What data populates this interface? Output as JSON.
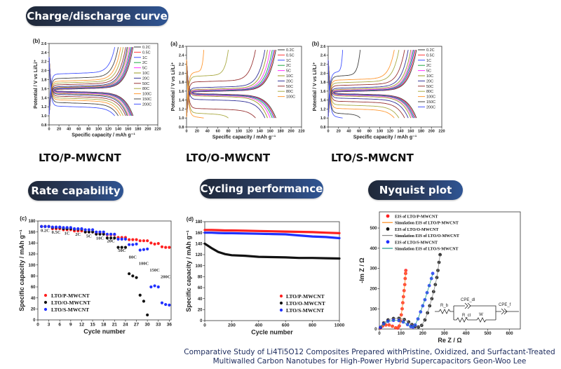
{
  "headers": {
    "charge_discharge": "Charge/discharge curve",
    "rate_capability": "Rate capability",
    "cycling": "Cycling performance",
    "nyquist": "Nyquist plot"
  },
  "sample_labels": [
    "LTO/P-MWCNT",
    "LTO/O-MWCNT",
    "LTO/S-MWCNT"
  ],
  "caption": "Comparative Study of Li4Ti5O12 Composites Prepared withPristine, Oxidized, and Surfactant-Treated Multiwalled Carbon Nanotubes for High-Power Hybrid Supercapacitors Geon-Woo Lee",
  "chart_data": [
    {
      "type": "line",
      "panel_label": "(b)",
      "xlabel": "Specific capacity / mAh g⁻¹",
      "ylabel": "Potential / V vs Li/Li⁺",
      "xlim": [
        0,
        220
      ],
      "ylim": [
        0.8,
        2.6
      ],
      "xticks": [
        "0",
        "20",
        "40",
        "60",
        "80",
        "100",
        "120",
        "140",
        "160",
        "180",
        "200",
        "220"
      ],
      "yticks": [
        "0.8",
        "1.0",
        "1.2",
        "1.4",
        "1.6",
        "1.8",
        "2.0",
        "2.2",
        "2.4",
        "2.6"
      ],
      "legend_position": "top-right",
      "series": [
        {
          "name": "0.2C",
          "color": "#3a3a3a",
          "capacity": 170,
          "charge_plateau": 1.58,
          "discharge_plateau": 1.55
        },
        {
          "name": "0.5C",
          "color": "#ff3b3b",
          "capacity": 168,
          "charge_plateau": 1.585,
          "discharge_plateau": 1.545
        },
        {
          "name": "1C",
          "color": "#3b4bff",
          "capacity": 167,
          "charge_plateau": 1.59,
          "discharge_plateau": 1.54
        },
        {
          "name": "2C",
          "color": "#22a844",
          "capacity": 165,
          "charge_plateau": 1.6,
          "discharge_plateau": 1.53
        },
        {
          "name": "5C",
          "color": "#ff33ff",
          "capacity": 163,
          "charge_plateau": 1.61,
          "discharge_plateau": 1.52
        },
        {
          "name": "10C",
          "color": "#9a9a22",
          "capacity": 160,
          "charge_plateau": 1.62,
          "discharge_plateau": 1.5
        },
        {
          "name": "20C",
          "color": "#333399",
          "capacity": 158,
          "charge_plateau": 1.64,
          "discharge_plateau": 1.48
        },
        {
          "name": "50C",
          "color": "#993333",
          "capacity": 155,
          "charge_plateau": 1.68,
          "discharge_plateau": 1.44
        },
        {
          "name": "80C",
          "color": "#aaaa44",
          "capacity": 150,
          "charge_plateau": 1.72,
          "discharge_plateau": 1.4
        },
        {
          "name": "100C",
          "color": "#ff9933",
          "capacity": 145,
          "charge_plateau": 1.76,
          "discharge_plateau": 1.36
        },
        {
          "name": "150C",
          "color": "#444444",
          "capacity": 140,
          "charge_plateau": 1.82,
          "discharge_plateau": 1.3
        },
        {
          "name": "200C",
          "color": "#4455ff",
          "capacity": 133,
          "charge_plateau": 1.92,
          "discharge_plateau": 1.22
        }
      ]
    },
    {
      "type": "line",
      "panel_label": "(a)",
      "xlabel": "Specific capacity / mAh g⁻¹",
      "ylabel": "Potential / V vs Li/Li⁺",
      "xlim": [
        0,
        220
      ],
      "ylim": [
        0.8,
        2.6
      ],
      "xticks": [
        "0",
        "20",
        "40",
        "60",
        "80",
        "100",
        "120",
        "140",
        "160",
        "180",
        "200",
        "220"
      ],
      "yticks": [
        "0.8",
        "1.0",
        "1.2",
        "1.4",
        "1.6",
        "1.8",
        "2.0",
        "2.2",
        "2.4",
        "2.6"
      ],
      "legend_position": "top-right",
      "series": [
        {
          "name": "0.2C",
          "color": "#3a3a3a",
          "capacity": 171,
          "charge_plateau": 1.58,
          "discharge_plateau": 1.55
        },
        {
          "name": "0.5C",
          "color": "#ff3b3b",
          "capacity": 169,
          "charge_plateau": 1.585,
          "discharge_plateau": 1.545
        },
        {
          "name": "1C",
          "color": "#3b4bff",
          "capacity": 167,
          "charge_plateau": 1.59,
          "discharge_plateau": 1.54
        },
        {
          "name": "2C",
          "color": "#22a844",
          "capacity": 164,
          "charge_plateau": 1.6,
          "discharge_plateau": 1.53
        },
        {
          "name": "5C",
          "color": "#ff33ff",
          "capacity": 160,
          "charge_plateau": 1.61,
          "discharge_plateau": 1.52
        },
        {
          "name": "10C",
          "color": "#9a9a22",
          "capacity": 155,
          "charge_plateau": 1.63,
          "discharge_plateau": 1.5
        },
        {
          "name": "20C",
          "color": "#333399",
          "capacity": 150,
          "charge_plateau": 1.67,
          "discharge_plateau": 1.42
        },
        {
          "name": "50C",
          "color": "#993333",
          "capacity": 132,
          "charge_plateau": 1.8,
          "discharge_plateau": 1.22
        },
        {
          "name": "80C",
          "color": "#aaaa44",
          "capacity": 80,
          "charge_plateau": 1.92,
          "discharge_plateau": 1.12
        },
        {
          "name": "100C",
          "color": "#ff9933",
          "capacity": 33,
          "charge_plateau": 2.0,
          "discharge_plateau": 1.05
        }
      ]
    },
    {
      "type": "line",
      "panel_label": "(b)",
      "xlabel": "Specific capacity / mAh g⁻¹",
      "ylabel": "Potential / V vs Li/Li⁺",
      "xlim": [
        0,
        220
      ],
      "ylim": [
        0.8,
        2.6
      ],
      "xticks": [
        "0",
        "20",
        "40",
        "60",
        "80",
        "100",
        "120",
        "140",
        "160",
        "180",
        "200",
        "220"
      ],
      "yticks": [
        "0.8",
        "1.0",
        "1.2",
        "1.4",
        "1.6",
        "1.8",
        "2.0",
        "2.2",
        "2.4",
        "2.6"
      ],
      "legend_position": "top-right",
      "series": [
        {
          "name": "0.2C",
          "color": "#3a3a3a",
          "capacity": 171,
          "charge_plateau": 1.58,
          "discharge_plateau": 1.55
        },
        {
          "name": "0.5C",
          "color": "#ff3b3b",
          "capacity": 169,
          "charge_plateau": 1.585,
          "discharge_plateau": 1.545
        },
        {
          "name": "1C",
          "color": "#3b4bff",
          "capacity": 167,
          "charge_plateau": 1.59,
          "discharge_plateau": 1.54
        },
        {
          "name": "2C",
          "color": "#22a844",
          "capacity": 165,
          "charge_plateau": 1.6,
          "discharge_plateau": 1.53
        },
        {
          "name": "5C",
          "color": "#ff33ff",
          "capacity": 163,
          "charge_plateau": 1.61,
          "discharge_plateau": 1.52
        },
        {
          "name": "10C",
          "color": "#9a9a22",
          "capacity": 160,
          "charge_plateau": 1.63,
          "discharge_plateau": 1.5
        },
        {
          "name": "20C",
          "color": "#333399",
          "capacity": 155,
          "charge_plateau": 1.66,
          "discharge_plateau": 1.45
        },
        {
          "name": "50C",
          "color": "#993333",
          "capacity": 148,
          "charge_plateau": 1.72,
          "discharge_plateau": 1.38
        },
        {
          "name": "80C",
          "color": "#aaaa44",
          "capacity": 137,
          "charge_plateau": 1.78,
          "discharge_plateau": 1.3
        },
        {
          "name": "100C",
          "color": "#ff9933",
          "capacity": 128,
          "charge_plateau": 1.84,
          "discharge_plateau": 1.22
        },
        {
          "name": "150C",
          "color": "#444444",
          "capacity": 62,
          "charge_plateau": 1.92,
          "discharge_plateau": 1.12
        },
        {
          "name": "200C",
          "color": "#4455ff",
          "capacity": 28,
          "charge_plateau": 2.0,
          "discharge_plateau": 1.05
        }
      ]
    },
    {
      "type": "scatter",
      "panel_label": "(c)",
      "xlabel": "Cycle number",
      "ylabel": "Specific capacity / mAh g⁻¹",
      "xlim": [
        0,
        36.5
      ],
      "ylim": [
        0,
        180
      ],
      "xticks": [
        "0",
        "3",
        "6",
        "9",
        "12",
        "15",
        "18",
        "21",
        "24",
        "27",
        "30",
        "33",
        "36"
      ],
      "yticks": [
        "0",
        "20",
        "40",
        "60",
        "80",
        "100",
        "120",
        "140",
        "160",
        "180"
      ],
      "legend_position": "bottom-left",
      "rate_labels": [
        "0.2C",
        "0.5C",
        "1C",
        "2C",
        "5C",
        "10C",
        "20C",
        "50C",
        "80C",
        "100C",
        "150C",
        "200C"
      ],
      "series": [
        {
          "name": "LTO/P-MWCNT",
          "color": "#ff2020",
          "values": [
            170,
            170,
            170,
            166,
            166,
            166,
            164,
            164,
            164,
            162,
            162,
            162,
            160,
            160,
            160,
            157,
            157,
            157,
            155,
            155,
            155,
            150,
            150,
            150,
            146,
            146,
            146,
            144,
            144,
            144,
            140,
            138,
            139,
            133,
            132,
            132
          ]
        },
        {
          "name": "LTO/O-MWCNT",
          "color": "#111111",
          "values": [
            170,
            170,
            170,
            168,
            168,
            168,
            166,
            166,
            166,
            165,
            165,
            165,
            160,
            160,
            160,
            156,
            156,
            156,
            149,
            149,
            149,
            132,
            132,
            132,
            84,
            80,
            77,
            45,
            34,
            9,
            null,
            null,
            null,
            null,
            null,
            null
          ]
        },
        {
          "name": "LTO/S-MWCNT",
          "color": "#2030ff",
          "values": [
            170,
            170,
            170,
            169,
            169,
            169,
            168,
            168,
            168,
            166,
            166,
            166,
            164,
            164,
            164,
            160,
            160,
            160,
            156,
            156,
            156,
            147,
            147,
            147,
            137,
            137,
            138,
            127,
            128,
            129,
            60,
            62,
            60,
            31,
            28,
            27
          ]
        }
      ]
    },
    {
      "type": "line",
      "panel_label": "(d)",
      "xlabel": "Cycle number",
      "ylabel": "Specific capacity / mAh g⁻¹",
      "xlim": [
        0,
        1000
      ],
      "ylim": [
        0,
        180
      ],
      "xticks": [
        "0",
        "200",
        "400",
        "600",
        "800",
        "1000"
      ],
      "yticks": [
        "0",
        "20",
        "40",
        "60",
        "80",
        "100",
        "120",
        "140",
        "160",
        "180"
      ],
      "legend_position": "bottom-right",
      "x": [
        0,
        50,
        100,
        150,
        200,
        300,
        400,
        500,
        600,
        700,
        800,
        900,
        1000
      ],
      "series": [
        {
          "name": "LTO/P-MWCNT",
          "color": "#ff2020",
          "values": [
            165,
            165,
            164.5,
            164,
            164,
            163.5,
            163,
            162.5,
            162,
            161.5,
            161,
            160,
            159
          ]
        },
        {
          "name": "LTO/O-MWCNT",
          "color": "#111111",
          "values": [
            140,
            132,
            125,
            121,
            119,
            118,
            116,
            115.5,
            115,
            114,
            114,
            113.5,
            113
          ]
        },
        {
          "name": "LTO/S-MWCNT",
          "color": "#2030ff",
          "values": [
            160,
            160,
            159.5,
            159,
            159,
            158.5,
            158,
            157.5,
            157,
            155,
            153,
            152,
            150
          ]
        }
      ]
    },
    {
      "type": "scatter",
      "xlabel": "Re Z / Ω",
      "ylabel": "-Im Z / Ω",
      "xlim": [
        0,
        650
      ],
      "ylim": [
        0,
        580
      ],
      "xticks": [
        "0",
        "100",
        "200",
        "300",
        "400",
        "500",
        "600"
      ],
      "yticks": [
        "0",
        "100",
        "200",
        "300",
        "400",
        "500"
      ],
      "legend_position": "top-left",
      "series": [
        {
          "name": "EIS of LTO/P-MWCNT",
          "color": "#ff2020",
          "points": [
            [
              5,
              5
            ],
            [
              15,
              15
            ],
            [
              30,
              20
            ],
            [
              45,
              20
            ],
            [
              60,
              14
            ],
            [
              75,
              6
            ],
            [
              85,
              5
            ],
            [
              92,
              15
            ],
            [
              97,
              40
            ],
            [
              101,
              70
            ],
            [
              105,
              100
            ],
            [
              108,
              130
            ],
            [
              111,
              160
            ],
            [
              114,
              190
            ],
            [
              117,
              220
            ],
            [
              119,
              250
            ],
            [
              121,
              275
            ],
            [
              122,
              290
            ]
          ]
        },
        {
          "name": "Simulation EIS of LTO/P-MWCNT",
          "color": "#ff8c1a",
          "fit_of": 0
        },
        {
          "name": "EIS of LTO/O-MWCNT",
          "color": "#111111",
          "points": [
            [
              5,
              8
            ],
            [
              20,
              30
            ],
            [
              40,
              45
            ],
            [
              65,
              52
            ],
            [
              90,
              53
            ],
            [
              115,
              47
            ],
            [
              135,
              35
            ],
            [
              150,
              22
            ],
            [
              165,
              12
            ],
            [
              180,
              10
            ],
            [
              195,
              18
            ],
            [
              210,
              45
            ],
            [
              222,
              80
            ],
            [
              232,
              115
            ],
            [
              242,
              150
            ],
            [
              250,
              185
            ],
            [
              258,
              220
            ],
            [
              265,
              255
            ],
            [
              270,
              290
            ],
            [
              275,
              330
            ],
            [
              280,
              368
            ]
          ]
        },
        {
          "name": "Simulation EIS of LTO/O-MWCNT",
          "color": "#888888",
          "fit_of": 2
        },
        {
          "name": "EIS of LTO/S-MWCNT",
          "color": "#2030ff",
          "points": [
            [
              5,
              8
            ],
            [
              20,
              25
            ],
            [
              40,
              38
            ],
            [
              65,
              43
            ],
            [
              90,
              42
            ],
            [
              110,
              35
            ],
            [
              130,
              22
            ],
            [
              145,
              12
            ],
            [
              155,
              10
            ],
            [
              165,
              20
            ],
            [
              178,
              50
            ],
            [
              190,
              85
            ],
            [
              200,
              115
            ],
            [
              210,
              145
            ],
            [
              220,
              180
            ],
            [
              230,
              215
            ],
            [
              240,
              250
            ],
            [
              246,
              275
            ]
          ]
        },
        {
          "name": "Simulation EIS of LTO/S-MWCNT",
          "color": "#1f9a8a",
          "fit_of": 4
        }
      ],
      "circuit": {
        "elements": [
          "R_b",
          "CPE_dl",
          "R_ct",
          "W",
          "CPE_f"
        ]
      }
    }
  ]
}
